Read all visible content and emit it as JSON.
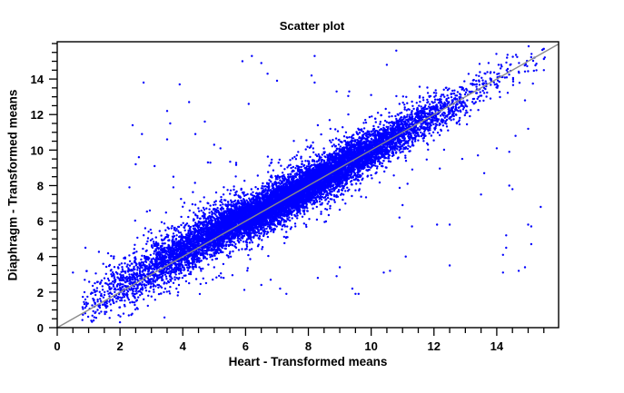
{
  "chart_data": {
    "type": "scatter",
    "title": "Scatter plot",
    "xlabel": "Heart - Transformed means",
    "ylabel": "Diaphragm - Transformed means",
    "xlim": [
      0,
      15.97
    ],
    "ylim": [
      0,
      16.1
    ],
    "x_ticks": [
      0,
      2,
      4,
      6,
      8,
      10,
      12,
      14
    ],
    "y_ticks": [
      0,
      2,
      4,
      6,
      8,
      10,
      12,
      14
    ],
    "x_minor_step": 0.5,
    "y_minor_step": 0.5,
    "grid": false,
    "legend": null,
    "reference_line": {
      "type": "identity",
      "from": [
        0,
        0
      ],
      "to": [
        15.97,
        15.97
      ],
      "color": "#8c8c8c"
    },
    "point_color": "#0000ff",
    "point_radius": 1.2,
    "dense_cloud": {
      "description": "Approx. 12,000 points tightly correlated along y = x, densest from x≈3 to x≈12; spread (sd) ≈ 0.55 around the diagonal, slightly wider at low x",
      "approx_count": 12000,
      "x_range": [
        0.8,
        15.6
      ],
      "y_spread_sd": 0.55,
      "seed": 17
    },
    "outliers": [
      [
        0.5,
        3.1
      ],
      [
        0.9,
        4.5
      ],
      [
        1.2,
        2.5
      ],
      [
        1.8,
        3.9
      ],
      [
        2.0,
        1.7
      ],
      [
        2.4,
        11.4
      ],
      [
        2.75,
        13.8
      ],
      [
        2.3,
        7.9
      ],
      [
        2.5,
        9.2
      ],
      [
        2.6,
        9.6
      ],
      [
        2.7,
        10.9
      ],
      [
        2.95,
        6.6
      ],
      [
        3.1,
        9.1
      ],
      [
        3.5,
        10.6
      ],
      [
        3.5,
        12.2
      ],
      [
        3.6,
        11.5
      ],
      [
        3.7,
        7.9
      ],
      [
        3.7,
        8.5
      ],
      [
        3.9,
        13.7
      ],
      [
        4.2,
        12.7
      ],
      [
        4.4,
        10.9
      ],
      [
        4.7,
        11.6
      ],
      [
        4.8,
        9.3
      ],
      [
        5.0,
        10.3
      ],
      [
        5.2,
        10.1
      ],
      [
        5.9,
        15.0
      ],
      [
        6.2,
        15.3
      ],
      [
        6.5,
        14.9
      ],
      [
        6.1,
        12.6
      ],
      [
        6.7,
        14.3
      ],
      [
        7.0,
        13.9
      ],
      [
        8.1,
        14.2
      ],
      [
        8.2,
        15.3
      ],
      [
        8.2,
        13.8
      ],
      [
        8.3,
        11.4
      ],
      [
        8.9,
        13.3
      ],
      [
        9.3,
        13.3
      ],
      [
        10.0,
        13.1
      ],
      [
        10.5,
        14.8
      ],
      [
        10.8,
        15.6
      ],
      [
        10.9,
        12.6
      ],
      [
        8.9,
        2.9
      ],
      [
        9.0,
        3.4
      ],
      [
        9.4,
        2.2
      ],
      [
        9.5,
        1.9
      ],
      [
        9.6,
        1.9
      ],
      [
        8.3,
        2.8
      ],
      [
        10.4,
        3.1
      ],
      [
        10.6,
        3.2
      ],
      [
        11.3,
        5.7
      ],
      [
        11.0,
        6.9
      ],
      [
        10.9,
        6.2
      ],
      [
        11.1,
        4.0
      ],
      [
        12.1,
        5.8
      ],
      [
        12.5,
        5.8
      ],
      [
        12.5,
        3.5
      ],
      [
        13.5,
        7.5
      ],
      [
        13.4,
        9.7
      ],
      [
        13.6,
        8.7
      ],
      [
        12.9,
        9.5
      ],
      [
        14.3,
        5.2
      ],
      [
        14.3,
        4.5
      ],
      [
        14.2,
        3.1
      ],
      [
        14.2,
        4.1
      ],
      [
        14.7,
        3.2
      ],
      [
        14.9,
        3.4
      ],
      [
        15.1,
        4.7
      ],
      [
        15.1,
        5.7
      ],
      [
        15.4,
        6.8
      ],
      [
        14.4,
        8.0
      ],
      [
        14.5,
        7.8
      ],
      [
        15.0,
        5.8
      ],
      [
        14.6,
        10.8
      ],
      [
        14.4,
        9.9
      ],
      [
        14.0,
        10.1
      ],
      [
        15.0,
        11.2
      ],
      [
        15.5,
        14.5
      ],
      [
        15.2,
        15.2
      ],
      [
        15.5,
        15.7
      ],
      [
        13.8,
        12.9
      ],
      [
        14.9,
        12.8
      ],
      [
        12.7,
        12.0
      ],
      [
        5.0,
        3.4
      ],
      [
        5.3,
        2.8
      ],
      [
        6.5,
        2.4
      ],
      [
        6.8,
        2.7
      ],
      [
        7.1,
        2.2
      ],
      [
        7.3,
        1.9
      ],
      [
        3.4,
        2.0
      ],
      [
        3.8,
        2.2
      ],
      [
        4.2,
        2.5
      ],
      [
        2.9,
        1.8
      ],
      [
        1.6,
        1.2
      ],
      [
        1.4,
        0.9
      ]
    ]
  }
}
